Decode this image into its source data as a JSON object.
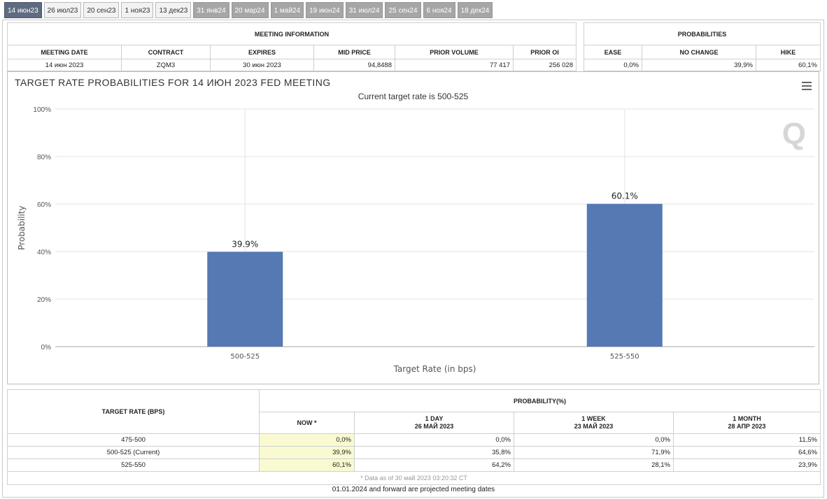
{
  "tabs": [
    {
      "label": "14 июн23",
      "state": "active"
    },
    {
      "label": "26 июл23",
      "state": "normal"
    },
    {
      "label": "20 сен23",
      "state": "normal"
    },
    {
      "label": "1 ноя23",
      "state": "normal"
    },
    {
      "label": "13 дек23",
      "state": "normal"
    },
    {
      "label": "31 янв24",
      "state": "future"
    },
    {
      "label": "20 мар24",
      "state": "future"
    },
    {
      "label": "1 май24",
      "state": "future"
    },
    {
      "label": "19 июн24",
      "state": "future"
    },
    {
      "label": "31 июл24",
      "state": "future"
    },
    {
      "label": "25 сен24",
      "state": "future"
    },
    {
      "label": "6 ноя24",
      "state": "future"
    },
    {
      "label": "18 дек24",
      "state": "future"
    }
  ],
  "meeting_info": {
    "title": "MEETING INFORMATION",
    "headers": [
      "MEETING DATE",
      "CONTRACT",
      "EXPIRES",
      "MID PRICE",
      "PRIOR VOLUME",
      "PRIOR OI"
    ],
    "row": [
      "14 июн 2023",
      "ZQM3",
      "30 июн 2023",
      "94,8488",
      "77 417",
      "256 028"
    ]
  },
  "probabilities": {
    "title": "PROBABILITIES",
    "headers": [
      "EASE",
      "NO CHANGE",
      "HIKE"
    ],
    "row": [
      "0,0%",
      "39,9%",
      "60,1%"
    ]
  },
  "chart": {
    "title": "TARGET RATE PROBABILITIES FOR 14 ИЮН 2023 FED MEETING",
    "subtitle": "Current target rate is 500-525",
    "watermark": "Q"
  },
  "chart_data": {
    "type": "bar",
    "categories": [
      "500-525",
      "525-550"
    ],
    "values": [
      39.9,
      60.1
    ],
    "data_labels": [
      "39.9%",
      "60.1%"
    ],
    "title": "TARGET RATE PROBABILITIES FOR 14 ИЮН 2023 FED MEETING",
    "subtitle": "Current target rate is 500-525",
    "xlabel": "Target Rate (in bps)",
    "ylabel": "Probability",
    "ylim": [
      0,
      100
    ],
    "yticks": [
      "0%",
      "20%",
      "40%",
      "60%",
      "80%",
      "100%"
    ],
    "bar_color": "#5479b3",
    "grid": true
  },
  "bottom": {
    "header_rate": "TARGET RATE (BPS)",
    "header_prob": "PROBABILITY(%)",
    "col_now": "NOW *",
    "col_day": "1 DAY",
    "col_day_date": "26 МАЙ 2023",
    "col_week": "1 WEEK",
    "col_week_date": "23 МАЙ 2023",
    "col_month": "1 MONTH",
    "col_month_date": "28 АПР 2023",
    "rows": [
      [
        "475-500",
        "0,0%",
        "0,0%",
        "0,0%",
        "11,5%"
      ],
      [
        "500-525 (Current)",
        "39,9%",
        "35,8%",
        "71,9%",
        "64,6%"
      ],
      [
        "525-550",
        "60,1%",
        "64,2%",
        "28,1%",
        "23,9%"
      ]
    ],
    "note": "* Data as of 30 май 2023 03:20:32 CT"
  },
  "footer": "01.01.2024 and forward are projected meeting dates"
}
